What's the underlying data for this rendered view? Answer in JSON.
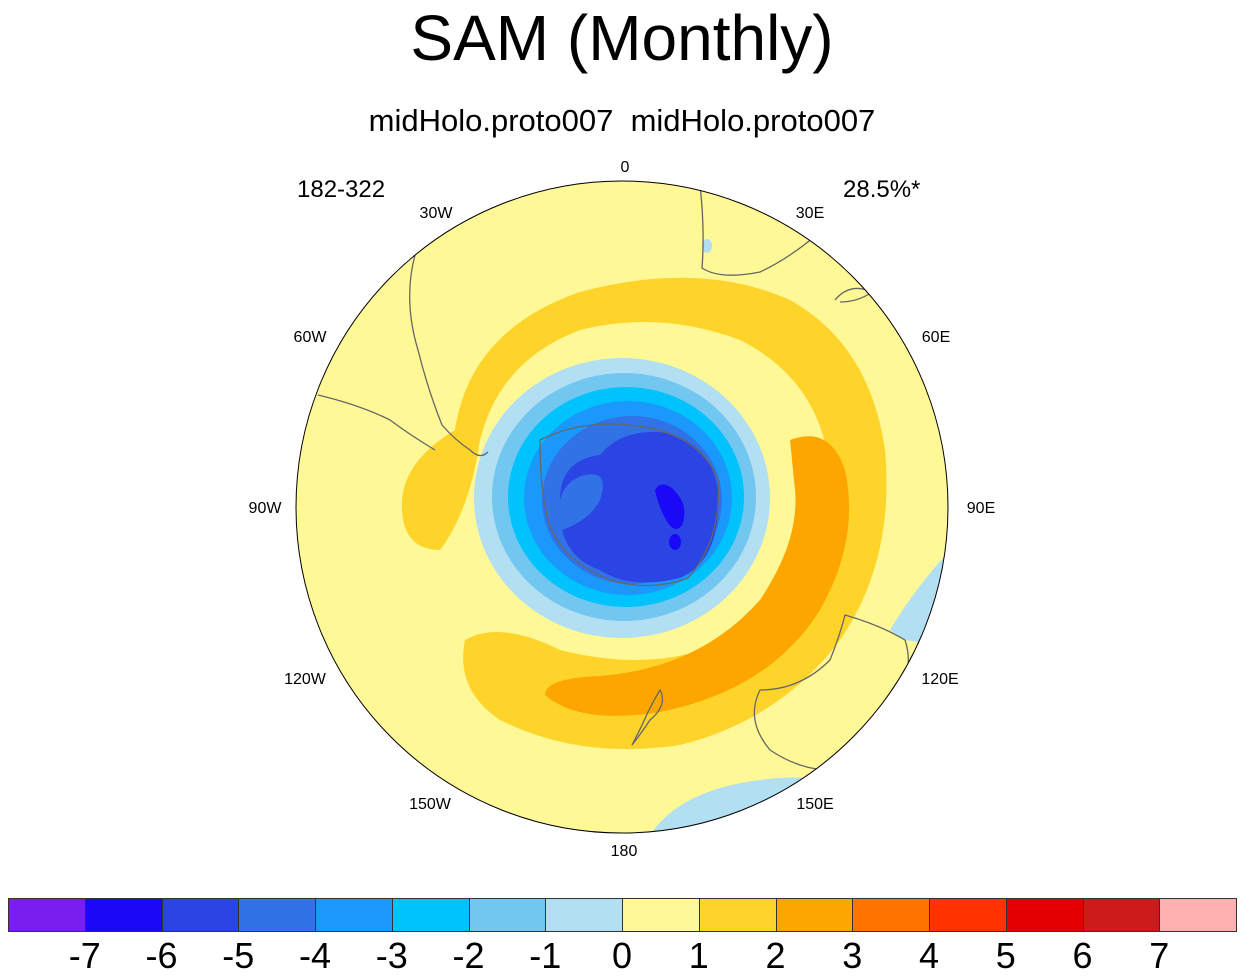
{
  "title": "SAM (Monthly)",
  "subtitle": "midHolo.proto007  midHolo.proto007",
  "left_label": "182-322",
  "right_label": "28.5%*",
  "longitude_labels": [
    "0",
    "30E",
    "60E",
    "90E",
    "120E",
    "150E",
    "180",
    "150W",
    "120W",
    "90W",
    "60W",
    "30W"
  ],
  "colorbar": {
    "colors": [
      "#7a1ef0",
      "#1a09f6",
      "#2b44e4",
      "#3172e6",
      "#1b98fc",
      "#00c2fc",
      "#72c7f0",
      "#b3dff3",
      "#fff897",
      "#fed42a",
      "#fda600",
      "#ff7400",
      "#ff3200",
      "#e40000",
      "#cd1b1b",
      "#ffb1b1"
    ],
    "labels": [
      "-7",
      "-6",
      "-5",
      "-4",
      "-3",
      "-2",
      "-1",
      "0",
      "1",
      "2",
      "3",
      "4",
      "5",
      "6",
      "7"
    ]
  }
}
